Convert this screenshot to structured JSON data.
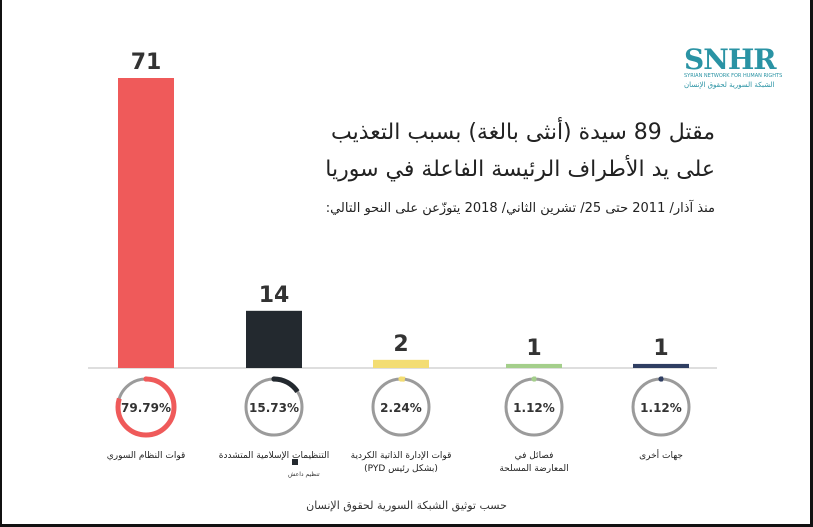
{
  "logo": {
    "main": "SNHR",
    "sub": "SYRIAN NETWORK FOR HUMAN RIGHTS",
    "arabic": "الشبكة السورية لحقوق الإنسان"
  },
  "title": {
    "line1": "مقتل 89 سيدة (أنثى بالغة) بسبب التعذيب",
    "line2": "على يد الأطراف الرئيسة الفاعلة في سوريا"
  },
  "subtitle": "منذ آذار/ 2011 حتى 25/ تشرين الثاني/ 2018 يتوزّعن على النحو التالي:",
  "footer": "حسب توثيق الشبكة السورية لحقوق الإنسان",
  "chart_data": {
    "type": "bar",
    "title": "مقتل 89 سيدة (أنثى بالغة) بسبب التعذيب على يد الأطراف الرئيسة الفاعلة في سوريا",
    "categories": [
      [
        "قوات النظام السوري"
      ],
      [
        "التنظيمات الإسلامية المتشددة"
      ],
      [
        "قوات الإدارة الذاتية الكردية",
        "(بشكل رئيس PYD)"
      ],
      [
        "فصائل في",
        "المعارضة المسلحة"
      ],
      [
        "جهات أخرى"
      ]
    ],
    "values": [
      71,
      14,
      2,
      1,
      1
    ],
    "value_labels": [
      "71",
      "14",
      "2",
      "1",
      "1"
    ],
    "percentages": [
      79.79,
      15.73,
      2.24,
      1.12,
      1.12
    ],
    "percentage_labels": [
      "79.79%",
      "15.73%",
      "2.24%",
      "1.12%",
      "1.12%"
    ],
    "colors": [
      "#ef5a5a",
      "#23292f",
      "#f3dd73",
      "#a4cf8b",
      "#2f3e62"
    ],
    "ring_track_color": "#9b9b9b",
    "legend_note": "تنظيم داعش",
    "ylim": [
      0,
      71
    ],
    "grid": false
  }
}
